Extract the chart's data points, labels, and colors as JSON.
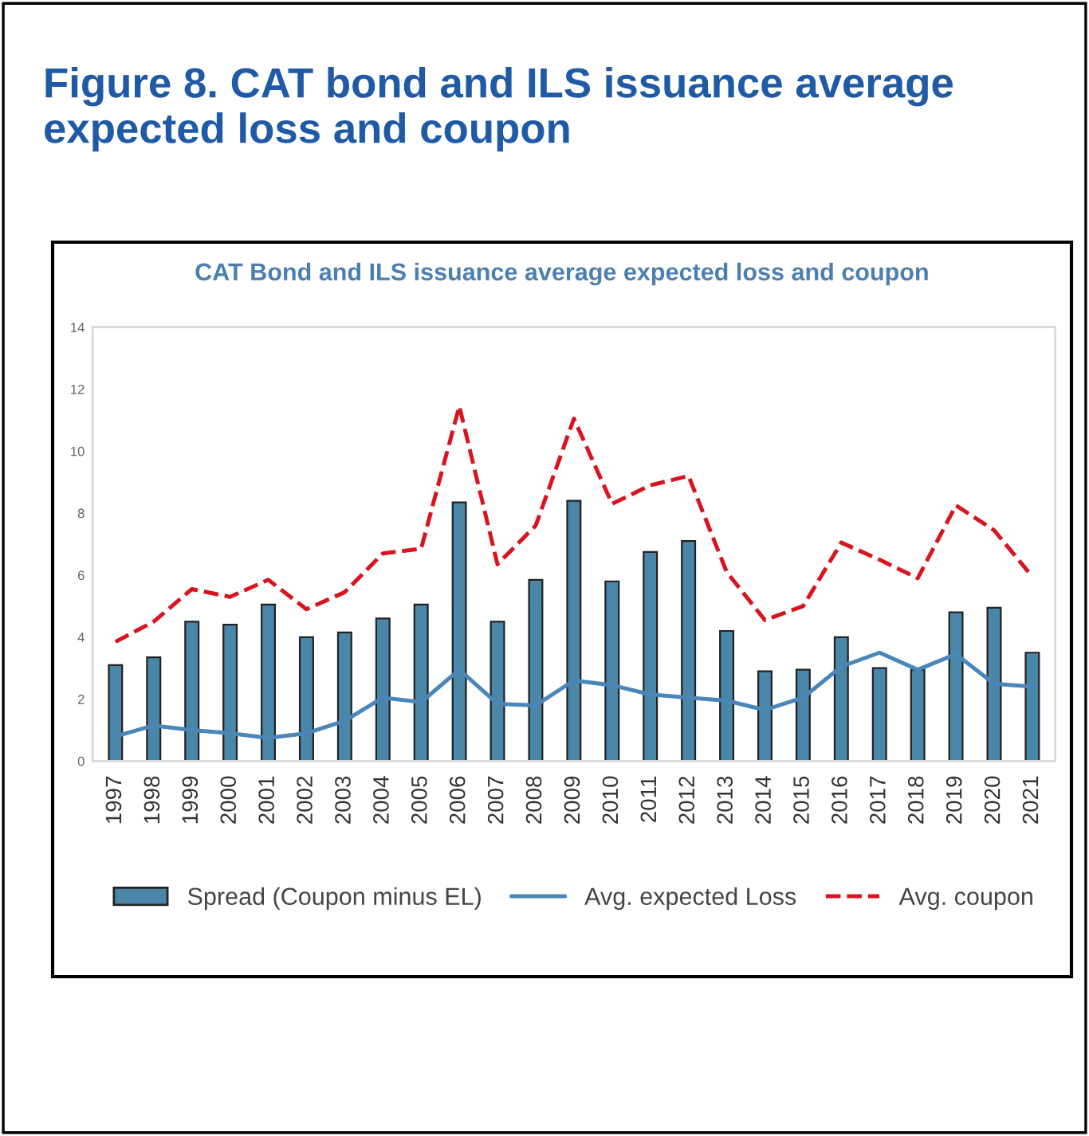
{
  "chart_data": {
    "type": "bar",
    "title": "Figure 8. CAT bond and ILS issuance average expected loss and coupon",
    "subtitle": "CAT Bond and ILS issuance average expected loss and coupon",
    "categories": [
      "1997",
      "1998",
      "1999",
      "2000",
      "2001",
      "2002",
      "2003",
      "2004",
      "2005",
      "2006",
      "2007",
      "2008",
      "2009",
      "2010",
      "2011",
      "2012",
      "2013",
      "2014",
      "2015",
      "2016",
      "2017",
      "2018",
      "2019",
      "2020",
      "2021"
    ],
    "series": [
      {
        "name": "Spread (Coupon minus EL)",
        "color": "#4a86a8",
        "values": [
          3.1,
          3.35,
          4.5,
          4.4,
          5.05,
          4.0,
          4.15,
          4.6,
          5.05,
          8.35,
          4.5,
          5.85,
          8.4,
          5.8,
          6.75,
          7.1,
          4.2,
          2.9,
          2.95,
          4.0,
          3.0,
          2.95,
          4.8,
          4.95,
          3.5
        ]
      },
      {
        "name": "Avg. expected Loss",
        "type": "line",
        "color": "#4a86b8",
        "line_style": "solid",
        "values": [
          0.8,
          1.15,
          1.0,
          0.9,
          0.75,
          0.9,
          1.3,
          2.05,
          1.9,
          2.95,
          1.85,
          1.8,
          2.6,
          2.45,
          2.15,
          2.05,
          1.95,
          1.65,
          2.05,
          3.05,
          3.5,
          2.95,
          3.45,
          2.5,
          2.4
        ]
      },
      {
        "name": "Avg. coupon",
        "type": "line",
        "color": "#d9141e",
        "line_style": "dashed",
        "values": [
          3.85,
          4.5,
          5.55,
          5.3,
          5.85,
          4.9,
          5.45,
          6.7,
          6.85,
          11.45,
          6.35,
          7.6,
          11.05,
          8.3,
          8.9,
          9.2,
          6.1,
          4.55,
          5.0,
          7.05,
          6.5,
          5.9,
          8.25,
          7.45,
          5.95
        ]
      }
    ],
    "ylim": [
      0,
      14
    ],
    "yticks": [
      0,
      2,
      4,
      6,
      8,
      10,
      12,
      14
    ],
    "grid": false,
    "legend": "bottom"
  }
}
